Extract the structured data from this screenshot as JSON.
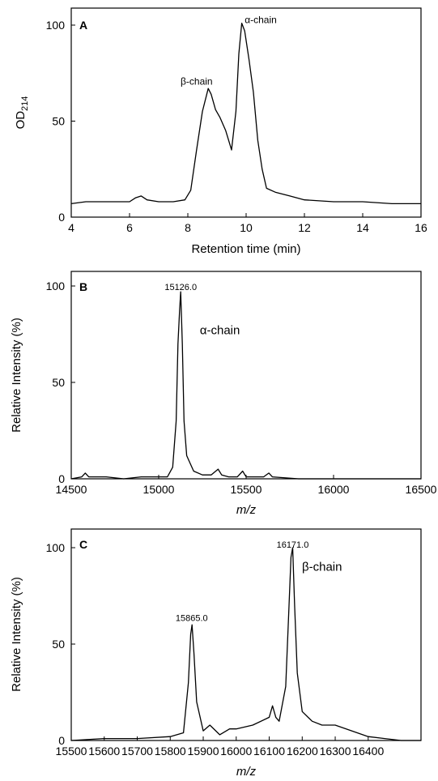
{
  "chart_data": [
    {
      "type": "line",
      "panel": "A",
      "xlabel": "Retention time (min)",
      "ylabel": "OD214",
      "xlim": [
        4,
        16
      ],
      "ylim": [
        0,
        100
      ],
      "xticks": [
        4,
        6,
        8,
        10,
        12,
        14,
        16
      ],
      "yticks": [
        0,
        50,
        100
      ],
      "annotations": [
        {
          "text": "α-chain",
          "x": 10.5,
          "y": 101
        },
        {
          "text": "β-chain",
          "x": 8.3,
          "y": 69
        }
      ],
      "series": [
        {
          "x": [
            4,
            4.5,
            5,
            5.5,
            6,
            6.2,
            6.4,
            6.6,
            7,
            7.5,
            7.9,
            8.1,
            8.3,
            8.5,
            8.7,
            8.8,
            8.95,
            9.1,
            9.3,
            9.5,
            9.65,
            9.75,
            9.85,
            9.95,
            10.1,
            10.25,
            10.4,
            10.55,
            10.7,
            11,
            11.5,
            12,
            13,
            14,
            15,
            16
          ],
          "y": [
            7,
            8,
            8,
            8,
            8,
            10,
            11,
            9,
            8,
            8,
            9,
            14,
            35,
            55,
            67,
            64,
            56,
            52,
            45,
            35,
            55,
            85,
            101,
            97,
            82,
            65,
            40,
            25,
            15,
            13,
            11,
            9,
            8,
            8,
            7,
            7
          ]
        }
      ]
    },
    {
      "type": "line",
      "panel": "B",
      "xlabel": "m/z",
      "ylabel": "Relative Intensity (%)",
      "xlim": [
        14500,
        16500
      ],
      "ylim": [
        0,
        100
      ],
      "xticks": [
        14500,
        15000,
        15500,
        16000,
        16500
      ],
      "yticks": [
        0,
        50,
        100
      ],
      "annotations": [
        {
          "text": "15126.0",
          "x": 15126,
          "y": 98
        },
        {
          "text": "α-chain",
          "x": 15350,
          "y": 75
        }
      ],
      "series": [
        {
          "x": [
            14500,
            14560,
            14580,
            14600,
            14700,
            14800,
            14900,
            15000,
            15050,
            15080,
            15100,
            15110,
            15120,
            15126,
            15135,
            15145,
            15160,
            15180,
            15200,
            15250,
            15300,
            15340,
            15360,
            15400,
            15450,
            15480,
            15500,
            15600,
            15630,
            15650,
            15800,
            16000,
            16200,
            16500
          ],
          "y": [
            0,
            1,
            3,
            1,
            1,
            0,
            1,
            1,
            1,
            6,
            30,
            70,
            88,
            97,
            70,
            30,
            12,
            8,
            4,
            2,
            2,
            5,
            2,
            1,
            1,
            4,
            1,
            1,
            3,
            1,
            0,
            0,
            0,
            0
          ]
        }
      ]
    },
    {
      "type": "line",
      "panel": "C",
      "xlabel": "m/z",
      "ylabel": "Relative Intensity (%)",
      "xlim": [
        15500,
        16560
      ],
      "ylim": [
        0,
        100
      ],
      "xticks": [
        15500,
        15600,
        15700,
        15800,
        15900,
        16000,
        16100,
        16200,
        16300,
        16400
      ],
      "yticks": [
        0,
        50,
        100
      ],
      "annotations": [
        {
          "text": "15865.0",
          "x": 15865,
          "y": 62
        },
        {
          "text": "16171.0",
          "x": 16171,
          "y": 100
        },
        {
          "text": "β-chain",
          "x": 16260,
          "y": 88
        }
      ],
      "series": [
        {
          "x": [
            15500,
            15600,
            15700,
            15800,
            15840,
            15855,
            15862,
            15866,
            15872,
            15880,
            15900,
            15920,
            15950,
            15980,
            16000,
            16050,
            16100,
            16110,
            16120,
            16130,
            16150,
            16160,
            16166,
            16171,
            16177,
            16185,
            16200,
            16230,
            16260,
            16300,
            16350,
            16400,
            16450,
            16500,
            16560
          ],
          "y": [
            0,
            1,
            1,
            2,
            4,
            30,
            55,
            60,
            45,
            20,
            5,
            8,
            3,
            6,
            6,
            8,
            12,
            18,
            12,
            10,
            28,
            70,
            95,
            100,
            70,
            35,
            15,
            10,
            8,
            8,
            5,
            2,
            1,
            0,
            0
          ]
        }
      ]
    }
  ]
}
